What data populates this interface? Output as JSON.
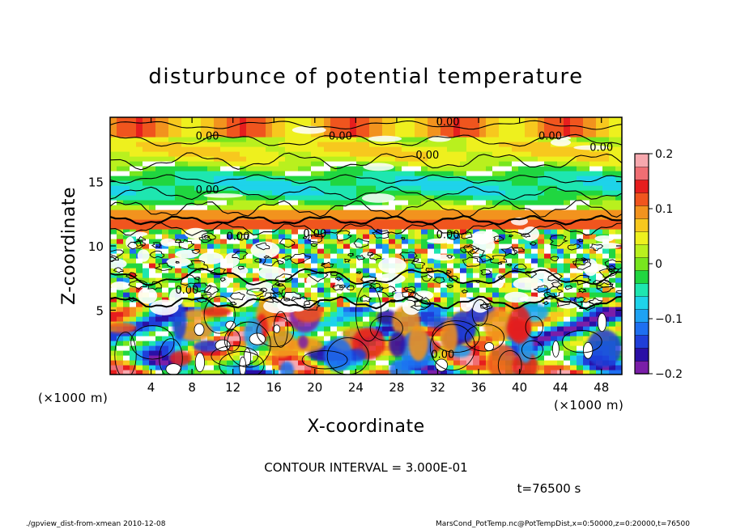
{
  "chart_data": {
    "type": "heatmap",
    "title": "disturbunce of potential temperature",
    "xlabel": "X-coordinate",
    "ylabel": "Z-coordinate",
    "x_unit": "(×1000 m)",
    "y_unit": "(×1000 m)",
    "xlim": [
      0,
      50
    ],
    "ylim": [
      0,
      20
    ],
    "x_ticks": [
      4,
      8,
      12,
      16,
      20,
      24,
      28,
      32,
      36,
      40,
      44,
      48
    ],
    "y_ticks": [
      5,
      10,
      15
    ],
    "colorbar": {
      "range": [
        -0.2,
        0.2
      ],
      "tick_values": [
        0.2,
        0.1,
        0,
        -0.1,
        -0.2
      ],
      "tick_labels": [
        "0.2",
        "0.1",
        "0",
        "−0.1",
        "−0.2"
      ]
    },
    "contour_label": "0.00",
    "contour_interval_text": "CONTOUR INTERVAL = 3.000E-01",
    "time_text": "t=76500 s",
    "footer_left": "./gpview_dist-from-xmean   2010-12-08",
    "footer_right": "MarsCond_PotTemp.nc@PotTempDist,x=0:50000,z=0:20000,t=76500",
    "grid": false,
    "legend": "colorbar-right"
  }
}
